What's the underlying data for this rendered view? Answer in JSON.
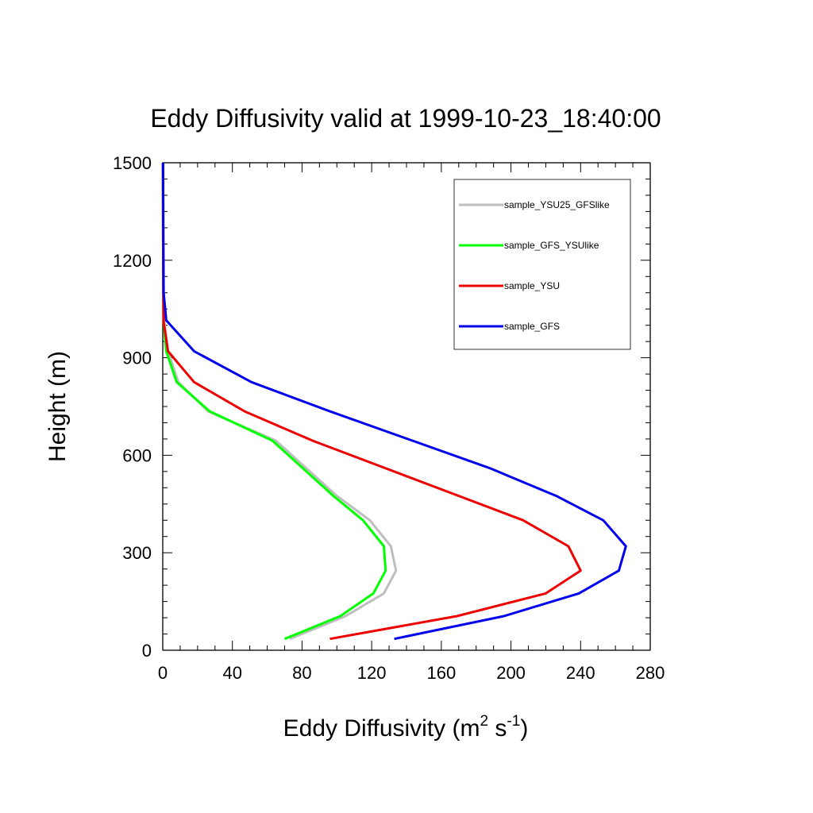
{
  "chart_data": {
    "type": "line",
    "title": "Eddy Diffusivity valid at 1999-10-23_18:40:00",
    "xlabel_base": "Eddy Diffusivity (m",
    "xlabel_sup1": "2",
    "xlabel_mid": " s",
    "xlabel_sup2": "-1",
    "xlabel_end": ")",
    "ylabel": "Height (m)",
    "xlim": [
      0,
      280
    ],
    "ylim": [
      0,
      1500
    ],
    "xticks": [
      0,
      40,
      80,
      120,
      160,
      200,
      240,
      280
    ],
    "xtick_labels": [
      "0",
      "40",
      "80",
      "120",
      "160",
      "200",
      "240",
      "280"
    ],
    "yticks": [
      0,
      300,
      600,
      900,
      1200,
      1500
    ],
    "ytick_labels": [
      "0",
      "300",
      "600",
      "900",
      "1200",
      "1500"
    ],
    "legend_position": "top-right",
    "series": [
      {
        "name": "sample_YSU25_GFSlike",
        "color": "#bebebe",
        "x": [
          73,
          105,
          127,
          134,
          131,
          119,
          100,
          65,
          26,
          9,
          3,
          1,
          0.5,
          0.3,
          0.2,
          0.1
        ],
        "y": [
          35,
          105,
          175,
          245,
          320,
          400,
          475,
          645,
          735,
          825,
          920,
          1010,
          1100,
          1200,
          1350,
          1500
        ]
      },
      {
        "name": "sample_GFS_YSUlike",
        "color": "#00ff00",
        "x": [
          70,
          102,
          121,
          128,
          127,
          115,
          98,
          63,
          27,
          8,
          2,
          0.5,
          0.3,
          0.2,
          0.1
        ],
        "y": [
          35,
          105,
          175,
          245,
          320,
          400,
          475,
          645,
          735,
          825,
          920,
          1010,
          1100,
          1300,
          1500
        ]
      },
      {
        "name": "sample_YSU",
        "color": "#ee0000",
        "x": [
          96,
          169,
          220,
          240,
          233,
          207,
          170,
          86,
          47,
          18,
          3,
          0.5,
          0.3,
          0.2,
          0.1
        ],
        "y": [
          35,
          105,
          175,
          245,
          320,
          400,
          475,
          645,
          735,
          825,
          920,
          1010,
          1100,
          1300,
          1500
        ]
      },
      {
        "name": "sample_GFS",
        "color": "#0000ee",
        "x": [
          133,
          196,
          239,
          262,
          266,
          253,
          226,
          188,
          96,
          51,
          18,
          2,
          0.5,
          0.3,
          0.2
        ],
        "y": [
          35,
          105,
          175,
          245,
          320,
          400,
          475,
          560,
          735,
          825,
          920,
          1015,
          1100,
          1300,
          1500
        ]
      }
    ]
  }
}
